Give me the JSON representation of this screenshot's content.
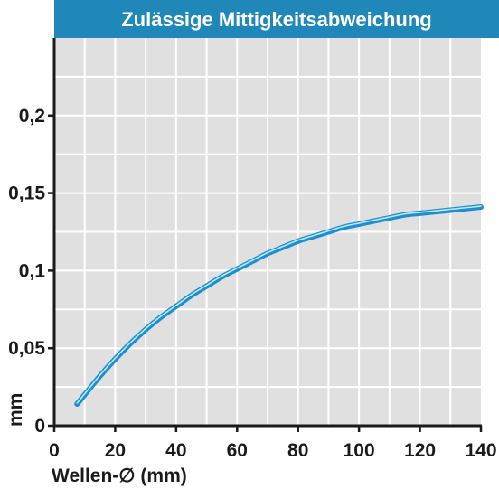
{
  "chart_data": {
    "type": "line",
    "title": "Zulässige Mittigkeitsabweichung",
    "xlabel": "Wellen-∅ (mm)",
    "ylabel": "mm",
    "xlim": [
      0,
      140
    ],
    "ylim": [
      0,
      0.25
    ],
    "x_ticks": [
      0,
      20,
      40,
      60,
      80,
      100,
      120,
      140
    ],
    "x_tick_labels": [
      "0",
      "20",
      "40",
      "60",
      "80",
      "100",
      "120",
      "140"
    ],
    "y_ticks": [
      0,
      0.05,
      0.1,
      0.15,
      0.2
    ],
    "y_tick_labels": [
      "0",
      "0,05",
      "0,1",
      "0,15",
      "0,2"
    ],
    "grid": true,
    "series": [
      {
        "x": [
          7.5,
          10,
          15,
          20,
          25,
          30,
          35,
          40,
          45,
          50,
          55,
          60,
          65,
          70,
          75,
          80,
          85,
          90,
          95,
          100,
          105,
          110,
          115,
          120,
          125,
          130,
          135,
          140
        ],
        "y": [
          0.014,
          0.02,
          0.032,
          0.043,
          0.053,
          0.062,
          0.07,
          0.077,
          0.084,
          0.09,
          0.096,
          0.101,
          0.106,
          0.111,
          0.115,
          0.119,
          0.122,
          0.125,
          0.128,
          0.13,
          0.132,
          0.134,
          0.136,
          0.137,
          0.138,
          0.139,
          0.14,
          0.141
        ]
      }
    ],
    "colors": {
      "title_bar": "#1f88b8",
      "plot_bg": "#e0e0e0",
      "grid": "#ffffff",
      "line": "#1b8fcf",
      "line_highlight": "#bfe6f7",
      "axis": "#1a1a1a"
    }
  }
}
